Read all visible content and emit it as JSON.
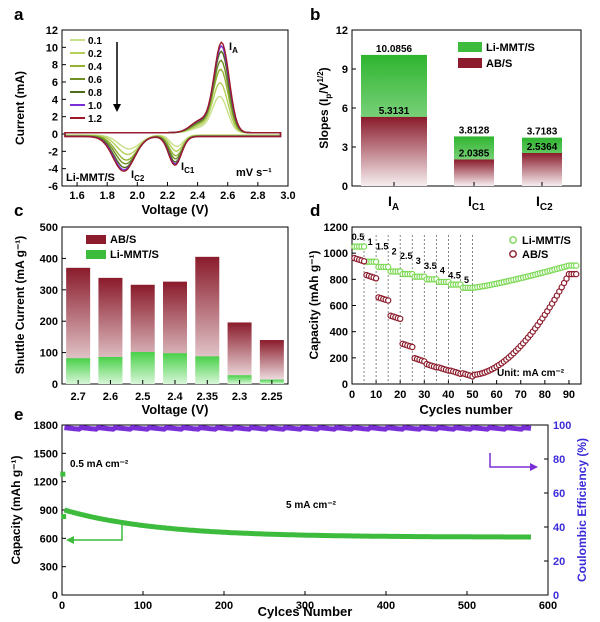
{
  "colors": {
    "green": "#3dbb3d",
    "lime": "#7ed957",
    "maroon": "#8c1c2c",
    "purple": "#7a2ed6",
    "axisPurple": "#3b2bd9",
    "cvScan": [
      "#c8df8a",
      "#b2cf5a",
      "#93b234",
      "#6f8f24",
      "#4e6d1a",
      "#7a2ed6",
      "#9a1a2a"
    ]
  },
  "chart_data": [
    {
      "panel": "a",
      "type": "line",
      "xlabel": "Voltage (V)",
      "ylabel": "Current (mA)",
      "xlim": [
        1.5,
        3.0
      ],
      "ylim": [
        -6,
        12
      ],
      "xticks": [
        "1.6",
        "1.8",
        "2.0",
        "2.2",
        "2.4",
        "2.6",
        "2.8",
        "3.0"
      ],
      "yticks": [
        "-6",
        "-4",
        "-2",
        "0",
        "2",
        "4",
        "6",
        "8",
        "10",
        "12"
      ],
      "legend_title": "mV s⁻¹",
      "series": [
        {
          "name": "0.1",
          "scale": 0.4
        },
        {
          "name": "0.2",
          "scale": 0.55
        },
        {
          "name": "0.4",
          "scale": 0.7
        },
        {
          "name": "0.6",
          "scale": 0.8
        },
        {
          "name": "0.8",
          "scale": 0.9
        },
        {
          "name": "1.0",
          "scale": 0.96
        },
        {
          "name": "1.2",
          "scale": 1.0
        }
      ],
      "annotations": {
        "sample": "Li-MMT/S",
        "IA": "I",
        "IA_sub": "A",
        "IC1": "I",
        "IC1_sub": "C1",
        "IC2": "I",
        "IC2_sub": "C2"
      }
    },
    {
      "panel": "b",
      "type": "bar",
      "ylabel": "Slopes (Ip/V1/2)",
      "ylim": [
        0,
        12
      ],
      "yticks": [
        "0",
        "3",
        "6",
        "9",
        "12"
      ],
      "categories": [
        {
          "main": "I",
          "sub": "A"
        },
        {
          "main": "I",
          "sub": "C1"
        },
        {
          "main": "I",
          "sub": "C2"
        }
      ],
      "series": [
        {
          "name": "Li-MMT/S",
          "values": [
            10.0856,
            3.8128,
            3.7183
          ],
          "labels": [
            "10.0856",
            "3.8128",
            "3.7183"
          ]
        },
        {
          "name": "AB/S",
          "values": [
            5.3131,
            2.0385,
            2.5364
          ],
          "labels": [
            "5.3131",
            "2.0385",
            "2.5364"
          ]
        }
      ]
    },
    {
      "panel": "c",
      "type": "bar",
      "xlabel": "Voltage (V)",
      "ylabel": "Shuttle Current (mA g⁻¹)",
      "ylim": [
        0,
        500
      ],
      "yticks": [
        "0",
        "100",
        "200",
        "300",
        "400",
        "500"
      ],
      "categories": [
        "2.7",
        "2.6",
        "2.5",
        "2.4",
        "2.35",
        "2.3",
        "2.25"
      ],
      "series": [
        {
          "name": "AB/S",
          "values": [
            370,
            338,
            316,
            326,
            405,
            196,
            140
          ]
        },
        {
          "name": "Li-MMT/S",
          "values": [
            82,
            86,
            102,
            98,
            88,
            28,
            14
          ]
        }
      ]
    },
    {
      "panel": "d",
      "type": "scatter",
      "xlabel": "Cycles number",
      "ylabel": "Capacity (mAh g⁻¹)",
      "xlim": [
        0,
        95
      ],
      "ylim": [
        0,
        1200
      ],
      "xticks": [
        "0",
        "10",
        "20",
        "30",
        "40",
        "50",
        "60",
        "70",
        "80",
        "90"
      ],
      "yticks": [
        "0",
        "200",
        "400",
        "600",
        "800",
        "1000",
        "1200"
      ],
      "rate_labels": [
        "0.5",
        "1",
        "1.5",
        "2",
        "2.5",
        "3",
        "3.5",
        "4",
        "4.5",
        "5"
      ],
      "unit_note": "Unit: mA cm⁻²",
      "series": [
        {
          "name": "Li-MMT/S",
          "segments": [
            1050,
            935,
            895,
            860,
            840,
            820,
            800,
            780,
            760,
            735
          ],
          "recovery": 905
        },
        {
          "name": "AB/S",
          "segments": [
            950,
            820,
            650,
            510,
            295,
            185,
            140,
            115,
            90,
            70
          ],
          "recovery": 840
        }
      ]
    },
    {
      "panel": "e",
      "type": "line",
      "xlabel": "Cylces Number",
      "ylabel": "Capacity (mAh g⁻¹)",
      "y2label": "Coulombic Efficiency (%)",
      "xlim": [
        0,
        600
      ],
      "ylim": [
        0,
        1800
      ],
      "y2lim": [
        0,
        100
      ],
      "xticks": [
        "0",
        "100",
        "200",
        "300",
        "400",
        "500",
        "600"
      ],
      "yticks": [
        "0",
        "300",
        "600",
        "900",
        "1200",
        "1500",
        "1800"
      ],
      "y2ticks": [
        "0",
        "20",
        "40",
        "60",
        "80",
        "100"
      ],
      "notes": {
        "low_rate": "0.5 mA cm⁻²",
        "high_rate": "5 mA cm⁻²"
      },
      "series": [
        {
          "name": "Capacity",
          "start": 900,
          "end": 612,
          "initial_points": [
            1280,
            830
          ]
        },
        {
          "name": "Coulombic Efficiency",
          "value": 98
        }
      ]
    }
  ],
  "panels": {
    "a": "a",
    "b": "b",
    "c": "c",
    "d": "d",
    "e": "e"
  }
}
